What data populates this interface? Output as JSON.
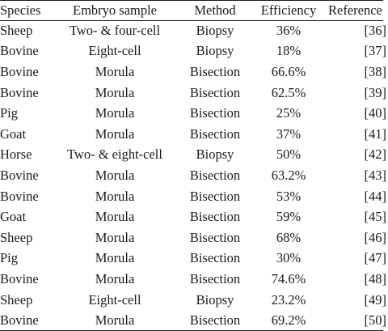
{
  "table": {
    "headers": {
      "species": "Species",
      "embryo": "Embryo sample",
      "method": "Method",
      "efficiency": "Efficiency",
      "reference": "Reference"
    },
    "rows": [
      {
        "species": "Sheep",
        "embryo": "Two- & four-cell",
        "method": "Biopsy",
        "efficiency": "36%",
        "reference": "[36]"
      },
      {
        "species": "Bovine",
        "embryo": "Eight-cell",
        "method": "Biopsy",
        "efficiency": "18%",
        "reference": "[37]"
      },
      {
        "species": "Bovine",
        "embryo": "Morula",
        "method": "Bisection",
        "efficiency": "66.6%",
        "reference": "[38]"
      },
      {
        "species": "Bovine",
        "embryo": "Morula",
        "method": "Bisection",
        "efficiency": "62.5%",
        "reference": "[39]"
      },
      {
        "species": "Pig",
        "embryo": "Morula",
        "method": "Bisection",
        "efficiency": "25%",
        "reference": "[40]"
      },
      {
        "species": "Goat",
        "embryo": "Morula",
        "method": "Bisection",
        "efficiency": "37%",
        "reference": "[41]"
      },
      {
        "species": "Horse",
        "embryo": "Two- & eight-cell",
        "method": "Biopsy",
        "efficiency": "50%",
        "reference": "[42]"
      },
      {
        "species": "Bovine",
        "embryo": "Morula",
        "method": "Bisection",
        "efficiency": "63.2%",
        "reference": "[43]"
      },
      {
        "species": "Bovine",
        "embryo": "Morula",
        "method": "Bisection",
        "efficiency": "53%",
        "reference": "[44]"
      },
      {
        "species": "Goat",
        "embryo": "Morula",
        "method": "Bisection",
        "efficiency": "59%",
        "reference": "[45]"
      },
      {
        "species": "Sheep",
        "embryo": "Morula",
        "method": "Bisection",
        "efficiency": "68%",
        "reference": "[46]"
      },
      {
        "species": "Pig",
        "embryo": "Morula",
        "method": "Bisection",
        "efficiency": "30%",
        "reference": "[47]"
      },
      {
        "species": "Bovine",
        "embryo": "Morula",
        "method": "Bisection",
        "efficiency": "74.6%",
        "reference": "[48]"
      },
      {
        "species": "Sheep",
        "embryo": "Eight-cell",
        "method": "Biopsy",
        "efficiency": "23.2%",
        "reference": "[49]"
      },
      {
        "species": "Bovine",
        "embryo": "Morula",
        "method": "Bisection",
        "efficiency": "69.2%",
        "reference": "[50]"
      }
    ]
  }
}
